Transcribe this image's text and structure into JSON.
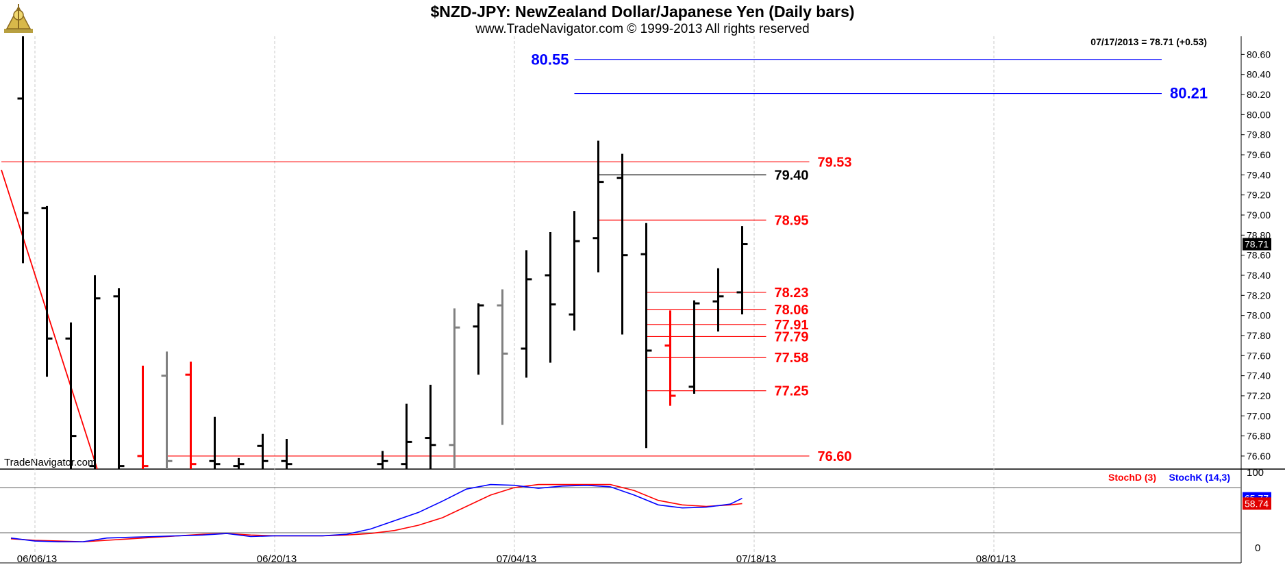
{
  "header": {
    "title": "$NZD-JPY:  NewZealand Dollar/Japanese Yen  (Daily bars)",
    "subtitle": "www.TradeNavigator.com © 1999-2013 All rights reserved",
    "watermark": "TradeNavigator.com"
  },
  "colors": {
    "price_bar": "#000000",
    "down_bar": "#ff0000",
    "gray_bar": "#808080",
    "fib_red": "#ff0000",
    "projection_blue": "#0000ff",
    "stoch_d": "#ff0000",
    "stoch_k": "#0000ff",
    "grid": "#c8c8c8"
  },
  "chart_data": [
    {
      "type": "ohlc",
      "title": "$NZD-JPY:  NewZealand Dollar/Japanese Yen  (Daily bars)",
      "info_line": "07/17/2013 = 78.71 (+0.53)",
      "last_price_tag": "78.71",
      "ylim": [
        76.47,
        80.78
      ],
      "y_ticks": [
        "80.60",
        "80.40",
        "80.20",
        "80.00",
        "79.80",
        "79.60",
        "79.40",
        "79.20",
        "79.00",
        "78.80",
        "78.60",
        "78.40",
        "78.20",
        "78.00",
        "77.80",
        "77.60",
        "77.40",
        "77.20",
        "77.00",
        "76.80",
        "76.60"
      ],
      "x_ticks": [
        {
          "day": 0,
          "label": "06/06/13"
        },
        {
          "day": 10,
          "label": "06/20/13"
        },
        {
          "day": 20,
          "label": "07/04/13"
        },
        {
          "day": 30,
          "label": "07/18/13"
        },
        {
          "day": 40,
          "label": "08/01/13"
        }
      ],
      "bars": [
        {
          "day": -0.5,
          "high": 80.78,
          "low": 78.52,
          "open": 80.16,
          "close": 79.02,
          "color": "black"
        },
        {
          "day": 0.5,
          "high": 79.09,
          "low": 77.39,
          "open": 79.07,
          "close": 77.77,
          "color": "black"
        },
        {
          "day": 1.5,
          "high": 77.93,
          "low": 76.47,
          "open": 77.77,
          "close": 76.8,
          "color": "black"
        },
        {
          "day": 2.5,
          "high": 78.4,
          "low": 76.47,
          "open": 76.5,
          "close": 78.17,
          "color": "black"
        },
        {
          "day": 3.5,
          "high": 78.27,
          "low": 76.47,
          "open": 78.19,
          "close": 76.5,
          "color": "black"
        },
        {
          "day": 4.5,
          "high": 77.5,
          "low": 76.47,
          "open": 76.6,
          "close": 76.5,
          "color": "red"
        },
        {
          "day": 5.5,
          "high": 77.64,
          "low": 76.47,
          "open": 77.4,
          "close": 76.55,
          "color": "gray"
        },
        {
          "day": 6.5,
          "high": 77.54,
          "low": 76.47,
          "open": 77.41,
          "close": 76.52,
          "color": "red"
        },
        {
          "day": 7.5,
          "high": 76.99,
          "low": 76.47,
          "open": 76.55,
          "close": 76.52,
          "color": "black"
        },
        {
          "day": 8.5,
          "high": 76.58,
          "low": 76.47,
          "open": 76.5,
          "close": 76.52,
          "color": "black"
        },
        {
          "day": 9.5,
          "high": 76.82,
          "low": 76.47,
          "open": 76.7,
          "close": 76.55,
          "color": "black"
        },
        {
          "day": 10.5,
          "high": 76.77,
          "low": 76.47,
          "open": 76.55,
          "close": 76.52,
          "color": "black"
        },
        {
          "day": 14.5,
          "high": 76.65,
          "low": 76.47,
          "open": 76.52,
          "close": 76.55,
          "color": "black"
        },
        {
          "day": 15.5,
          "high": 77.12,
          "low": 76.47,
          "open": 76.52,
          "close": 76.74,
          "color": "black"
        },
        {
          "day": 16.5,
          "high": 77.31,
          "low": 76.47,
          "open": 76.78,
          "close": 76.71,
          "color": "black"
        },
        {
          "day": 17.5,
          "high": 78.07,
          "low": 76.47,
          "open": 76.71,
          "close": 77.88,
          "color": "gray"
        },
        {
          "day": 18.5,
          "high": 78.12,
          "low": 77.41,
          "open": 77.89,
          "close": 78.1,
          "color": "black"
        },
        {
          "day": 19.5,
          "high": 78.26,
          "low": 76.91,
          "open": 78.1,
          "close": 77.62,
          "color": "gray"
        },
        {
          "day": 20.5,
          "high": 78.65,
          "low": 77.38,
          "open": 77.67,
          "close": 78.36,
          "color": "black"
        },
        {
          "day": 21.5,
          "high": 78.83,
          "low": 77.53,
          "open": 78.4,
          "close": 78.11,
          "color": "black"
        },
        {
          "day": 22.5,
          "high": 79.04,
          "low": 77.85,
          "open": 78.01,
          "close": 78.74,
          "color": "black"
        },
        {
          "day": 23.5,
          "high": 79.74,
          "low": 78.43,
          "open": 78.77,
          "close": 79.33,
          "color": "black"
        },
        {
          "day": 24.5,
          "high": 79.61,
          "low": 77.81,
          "open": 79.37,
          "close": 78.6,
          "color": "black"
        },
        {
          "day": 25.5,
          "high": 78.92,
          "low": 76.68,
          "open": 78.61,
          "close": 77.65,
          "color": "black"
        },
        {
          "day": 26.5,
          "high": 78.05,
          "low": 77.1,
          "open": 77.7,
          "close": 77.2,
          "color": "red"
        },
        {
          "day": 27.5,
          "high": 78.15,
          "low": 77.22,
          "open": 77.29,
          "close": 78.12,
          "color": "black"
        },
        {
          "day": 28.5,
          "high": 78.47,
          "low": 77.84,
          "open": 78.14,
          "close": 78.19,
          "color": "black"
        },
        {
          "day": 29.5,
          "high": 78.89,
          "low": 78.01,
          "open": 78.23,
          "close": 78.71,
          "color": "black"
        }
      ],
      "levels": [
        {
          "value": 80.55,
          "label": "80.55",
          "color": "blue",
          "x_from": 22.5,
          "x_to": 47.0,
          "label_pos": "left"
        },
        {
          "value": 80.21,
          "label": "80.21",
          "color": "blue",
          "x_from": 22.5,
          "x_to": 47.0,
          "label_pos": "right"
        },
        {
          "value": 79.53,
          "label": "79.53",
          "color": "red",
          "x_from": -1.4,
          "x_to": 32.3,
          "label_pos": "right"
        },
        {
          "value": 79.4,
          "label": "79.40",
          "color": "black",
          "x_from": 23.5,
          "x_to": 30.5,
          "label_pos": "right"
        },
        {
          "value": 78.95,
          "label": "78.95",
          "color": "red",
          "x_from": 23.5,
          "x_to": 30.5,
          "label_pos": "right"
        },
        {
          "value": 78.23,
          "label": "78.23",
          "color": "red",
          "x_from": 25.5,
          "x_to": 30.5,
          "label_pos": "right"
        },
        {
          "value": 78.06,
          "label": "78.06",
          "color": "red",
          "x_from": 25.5,
          "x_to": 30.5,
          "label_pos": "right"
        },
        {
          "value": 77.91,
          "label": "77.91",
          "color": "red",
          "x_from": 25.5,
          "x_to": 30.5,
          "label_pos": "right"
        },
        {
          "value": 77.79,
          "label": "77.79",
          "color": "red",
          "x_from": 25.5,
          "x_to": 30.5,
          "label_pos": "right"
        },
        {
          "value": 77.58,
          "label": "77.58",
          "color": "red",
          "x_from": 25.5,
          "x_to": 30.5,
          "label_pos": "right"
        },
        {
          "value": 77.25,
          "label": "77.25",
          "color": "red",
          "x_from": 25.5,
          "x_to": 30.5,
          "label_pos": "right"
        },
        {
          "value": 76.6,
          "label": "76.60",
          "color": "red",
          "x_from": 5.5,
          "x_to": 32.3,
          "label_pos": "right"
        }
      ],
      "trendline": {
        "color": "red",
        "from": {
          "day": -1.4,
          "value": 79.45
        },
        "to": {
          "day": 2.6,
          "value": 76.47
        }
      }
    },
    {
      "type": "line",
      "title": "",
      "ylim": [
        0,
        100
      ],
      "y_ticks": [
        "100",
        "0"
      ],
      "reference_lines": [
        80,
        20
      ],
      "legend_position": "top-right",
      "last_value_tags": [
        "65.77",
        "58.74"
      ],
      "x": [
        -1,
        -0.5,
        0,
        1,
        2,
        3,
        4,
        5,
        6,
        7,
        8,
        9,
        10,
        11,
        12,
        13,
        14,
        15,
        16,
        17,
        18,
        19,
        20,
        21,
        22,
        23,
        24,
        25,
        26,
        27,
        28,
        29,
        29.5
      ],
      "series": [
        {
          "name": "StochD (3)",
          "color": "red",
          "values": [
            12,
            11,
            10,
            9,
            8,
            10,
            12,
            14,
            16,
            18,
            19,
            17,
            16,
            16,
            16,
            17,
            19,
            23,
            30,
            40,
            55,
            70,
            80,
            84,
            84,
            84,
            84,
            76,
            63,
            57,
            55,
            57,
            58.74
          ]
        },
        {
          "name": "StochK (14,3)",
          "color": "blue",
          "values": [
            13,
            11,
            9,
            8,
            8,
            13,
            14,
            15,
            16,
            17,
            19,
            15,
            16,
            16,
            16,
            18,
            25,
            36,
            47,
            62,
            78,
            84,
            83,
            79,
            82,
            83,
            81,
            70,
            57,
            53,
            54,
            58,
            65.77
          ]
        }
      ]
    }
  ]
}
